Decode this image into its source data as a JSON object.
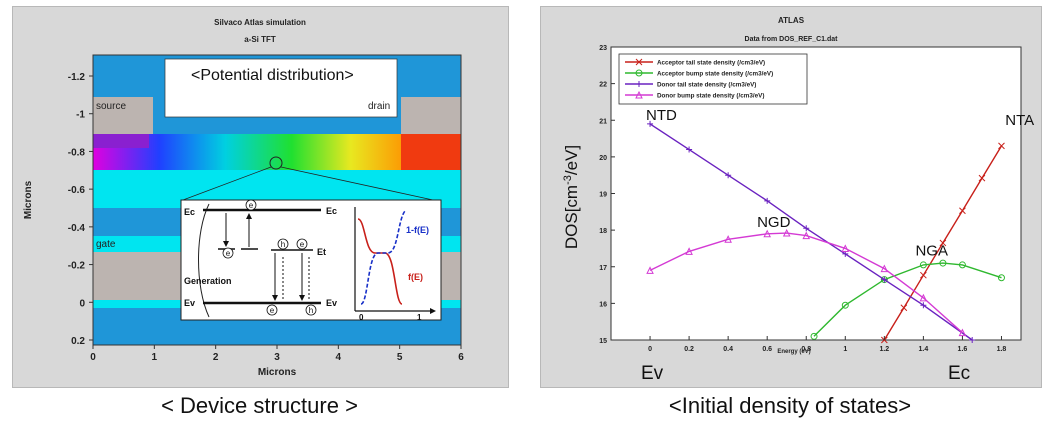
{
  "left": {
    "title": "Silvaco Atlas simulation",
    "subtitle": "a-Si TFT",
    "xlabel": "Microns",
    "ylabel": "Microns",
    "x_ticks": [
      "0",
      "1",
      "2",
      "3",
      "4",
      "5",
      "6"
    ],
    "y_ticks": [
      "-1.2",
      "-1",
      "-0.8",
      "-0.6",
      "-0.4",
      "-0.2",
      "0",
      "0.2"
    ],
    "region_labels": {
      "source": "source",
      "drain": "drain",
      "gate": "gate"
    },
    "annotation": "<Potential distribution>",
    "inset": {
      "ec_left": "Ec",
      "ec_right": "Ec",
      "ev_left": "Ev",
      "ev_right": "Ev",
      "et": "Et",
      "generation": "Generation",
      "electron": "e",
      "hole": "h",
      "curve_1fe": "1-f(E)",
      "curve_fe": "f(E)",
      "tick0": "0",
      "tick1": "1"
    },
    "caption": "< Device structure >"
  },
  "colors": {
    "blue": "#1f96d8",
    "cyan": "#00e5f0",
    "gray": "#bcb4b0",
    "red_accent": "#c8201a",
    "green_accent": "#2fb82f",
    "purple_accent": "#6a22c0",
    "magenta_accent": "#d43ad4"
  },
  "chart_data": {
    "type": "line",
    "title": "ATLAS",
    "subtitle": "Data from DOS_REF_C1.dat",
    "xlabel": "Energy (eV)",
    "ylabel": "DOS[cm-3/eV]",
    "xlim": [
      -0.2,
      1.9
    ],
    "ylim": [
      15,
      23
    ],
    "x_ticks": [
      0,
      0.2,
      0.4,
      0.6,
      0.8,
      1,
      1.2,
      1.4,
      1.6,
      1.8
    ],
    "y_ticks": [
      15,
      16,
      17,
      18,
      19,
      20,
      21,
      22,
      23
    ],
    "series": [
      {
        "name": "Acceptor tail state density (/cm3/eV)",
        "color": "#c8201a",
        "marker": "x",
        "x": [
          1.2,
          1.3,
          1.4,
          1.5,
          1.6,
          1.7,
          1.8
        ],
        "y": [
          15.0,
          15.88,
          16.77,
          17.65,
          18.53,
          19.42,
          20.3
        ]
      },
      {
        "name": "Acceptor bump state density (/cm3/eV)",
        "color": "#2fb82f",
        "marker": "o",
        "x": [
          0.84,
          1.0,
          1.2,
          1.4,
          1.5,
          1.6,
          1.8
        ],
        "y": [
          15.1,
          15.95,
          16.65,
          17.05,
          17.1,
          17.05,
          16.7
        ]
      },
      {
        "name": "Donor tail state density (/cm3/eV)",
        "color": "#6a22c0",
        "marker": "+",
        "x": [
          0,
          0.2,
          0.4,
          0.6,
          0.8,
          1.0,
          1.2,
          1.4,
          1.65
        ],
        "y": [
          20.9,
          20.2,
          19.5,
          18.8,
          18.05,
          17.35,
          16.65,
          15.95,
          15.0
        ]
      },
      {
        "name": "Donor bump state density (/cm3/eV)",
        "color": "#d43ad4",
        "marker": "^",
        "x": [
          0,
          0.2,
          0.4,
          0.6,
          0.7,
          0.8,
          1.0,
          1.2,
          1.4,
          1.6
        ],
        "y": [
          16.9,
          17.42,
          17.75,
          17.9,
          17.92,
          17.85,
          17.5,
          16.95,
          16.15,
          15.2
        ]
      }
    ],
    "annotations": [
      {
        "text": "NTD",
        "x": 0.0,
        "y": 20.9
      },
      {
        "text": "NTA",
        "x": 1.85,
        "y": 20.6
      },
      {
        "text": "NGD",
        "x": 0.62,
        "y": 17.98
      },
      {
        "text": "NGA",
        "x": 1.38,
        "y": 17.2
      }
    ],
    "axis_end_labels": {
      "left": "Ev",
      "right": "Ec"
    },
    "legend_position": "top-left",
    "grid": false
  },
  "right_caption": "<Initial density of states>"
}
